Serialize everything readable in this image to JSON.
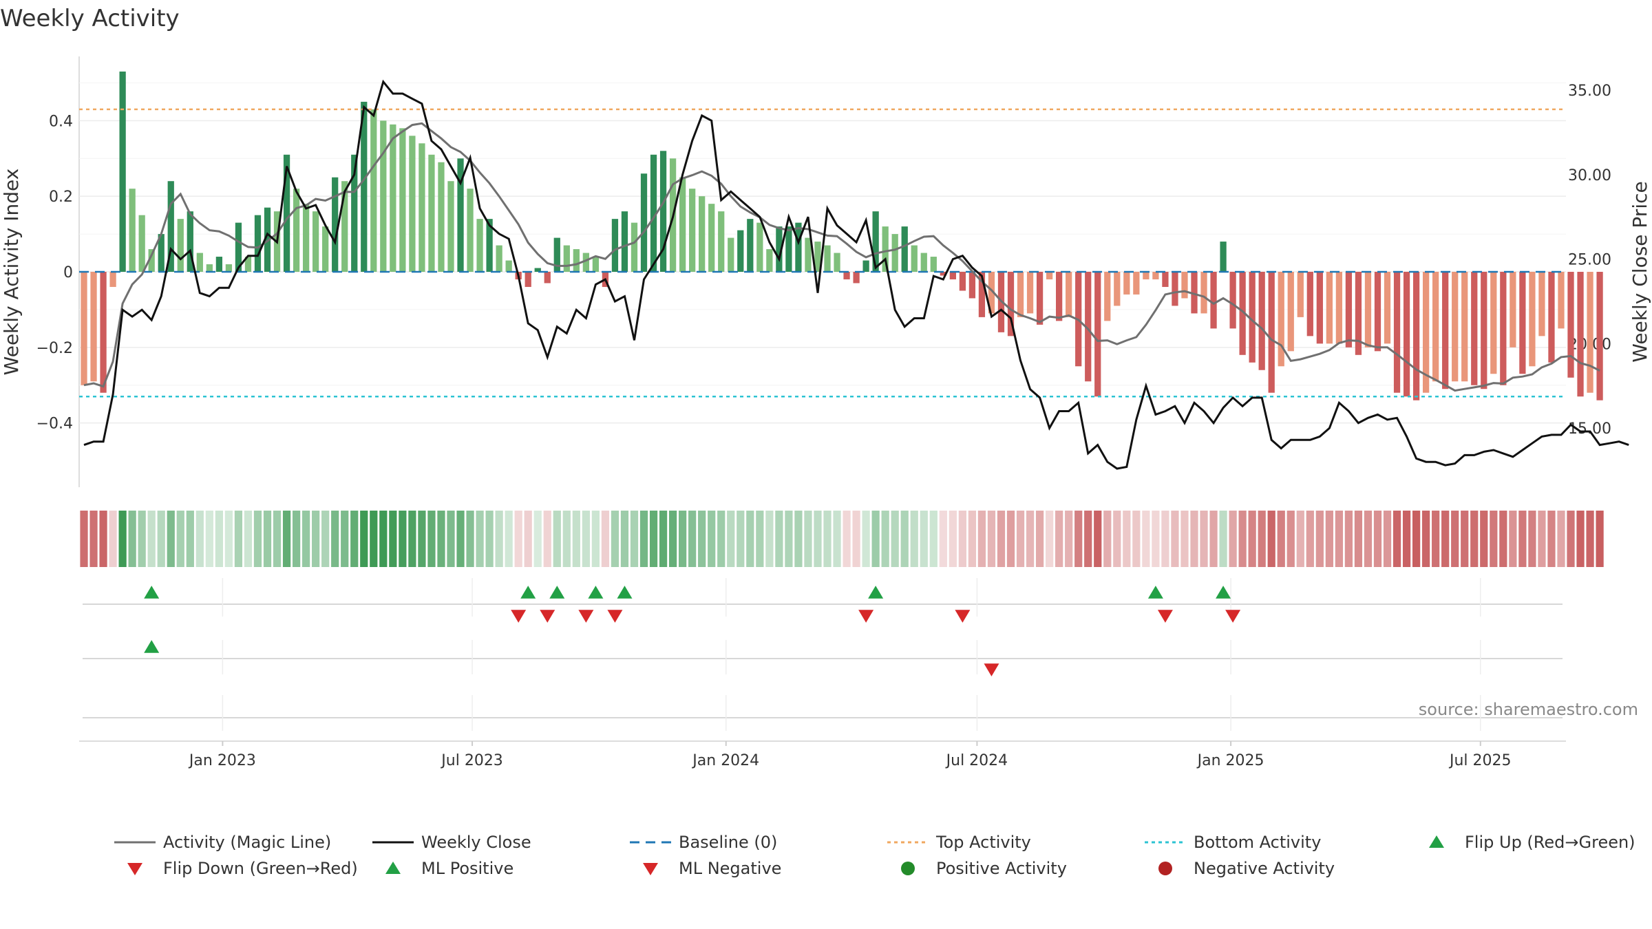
{
  "chart_data": {
    "type": "bar",
    "title": "Weekly Activity",
    "ylabel_left": "Weekly Activity Index",
    "ylabel_right": "Weekly Close Price",
    "ylim_left": [
      -0.57,
      0.57
    ],
    "ylim_right": [
      11.5,
      37
    ],
    "left_ticks": [
      {
        "v": 0.4,
        "label": "0.4"
      },
      {
        "v": 0.2,
        "label": "0.2"
      },
      {
        "v": 0,
        "label": "0"
      },
      {
        "v": -0.2,
        "label": "−0.2"
      },
      {
        "v": -0.4,
        "label": "−0.4"
      }
    ],
    "right_ticks": [
      {
        "v": 35,
        "label": "35.00"
      },
      {
        "v": 30,
        "label": "30.00"
      },
      {
        "v": 25,
        "label": "25.00"
      },
      {
        "v": 20,
        "label": "20.00"
      },
      {
        "v": 15,
        "label": "15.00"
      }
    ],
    "x_start": "2022-09-19",
    "x_end": "2025-09-01",
    "x_ticks": [
      {
        "date": "2023-01-01",
        "label": "Jan 2023"
      },
      {
        "date": "2023-07-01",
        "label": "Jul 2023"
      },
      {
        "date": "2024-01-01",
        "label": "Jan 2024"
      },
      {
        "date": "2024-07-01",
        "label": "Jul 2024"
      },
      {
        "date": "2025-01-01",
        "label": "Jan 2025"
      },
      {
        "date": "2025-07-01",
        "label": "Jul 2025"
      }
    ],
    "top_activity": 0.43,
    "bottom_activity": -0.33,
    "baseline": 0,
    "activity": [
      -0.3,
      -0.29,
      -0.32,
      -0.04,
      0.53,
      0.22,
      0.15,
      0.06,
      0.1,
      0.24,
      0.14,
      0.16,
      0.05,
      0.02,
      0.04,
      0.02,
      0.13,
      0.04,
      0.15,
      0.17,
      0.16,
      0.31,
      0.22,
      0.18,
      0.16,
      0.12,
      0.25,
      0.24,
      0.31,
      0.45,
      0.43,
      0.4,
      0.39,
      0.38,
      0.36,
      0.34,
      0.31,
      0.29,
      0.24,
      0.3,
      0.22,
      0.14,
      0.14,
      0.07,
      0.03,
      -0.02,
      -0.04,
      0.01,
      -0.03,
      0.09,
      0.07,
      0.06,
      0.05,
      0.04,
      -0.04,
      0.14,
      0.16,
      0.13,
      0.26,
      0.31,
      0.32,
      0.3,
      0.25,
      0.22,
      0.2,
      0.18,
      0.16,
      0.09,
      0.11,
      0.14,
      0.13,
      0.06,
      0.12,
      0.12,
      0.13,
      0.09,
      0.08,
      0.07,
      0.05,
      -0.02,
      -0.03,
      0.03,
      0.16,
      0.12,
      0.1,
      0.12,
      0.07,
      0.05,
      0.04,
      -0.01,
      -0.02,
      -0.05,
      -0.07,
      -0.12,
      -0.11,
      -0.16,
      -0.17,
      -0.12,
      -0.11,
      -0.14,
      -0.02,
      -0.13,
      -0.12,
      -0.25,
      -0.29,
      -0.33,
      -0.13,
      -0.09,
      -0.06,
      -0.06,
      -0.02,
      -0.02,
      -0.04,
      -0.09,
      -0.07,
      -0.11,
      -0.11,
      -0.15,
      0.08,
      -0.15,
      -0.22,
      -0.24,
      -0.26,
      -0.32,
      -0.25,
      -0.21,
      -0.12,
      -0.17,
      -0.19,
      -0.19,
      -0.19,
      -0.2,
      -0.22,
      -0.2,
      -0.21,
      -0.19,
      -0.32,
      -0.33,
      -0.34,
      -0.32,
      -0.29,
      -0.31,
      -0.29,
      -0.29,
      -0.3,
      -0.31,
      -0.27,
      -0.3,
      -0.2,
      -0.27,
      -0.25,
      -0.17,
      -0.24,
      -0.15,
      -0.28,
      -0.33,
      -0.32,
      -0.34
    ],
    "close_price": [
      14.0,
      14.2,
      14.2,
      17.0,
      22.0,
      21.6,
      22.0,
      21.4,
      22.8,
      25.6,
      25.0,
      25.5,
      23.0,
      22.8,
      23.3,
      23.3,
      24.5,
      25.2,
      25.2,
      26.5,
      26.0,
      30.5,
      29.0,
      28.0,
      28.2,
      27.0,
      26.0,
      29.0,
      30.0,
      34.0,
      33.5,
      35.5,
      34.8,
      34.8,
      34.5,
      34.2,
      32.0,
      31.5,
      30.5,
      29.5,
      31.0,
      28.0,
      27.0,
      26.5,
      26.2,
      24.0,
      21.2,
      20.8,
      19.2,
      21.0,
      20.6,
      22.0,
      21.5,
      23.5,
      23.8,
      22.5,
      22.8,
      20.2,
      23.8,
      24.7,
      25.6,
      27.5,
      30.0,
      32.0,
      33.5,
      33.2,
      28.5,
      29.0,
      28.5,
      28.0,
      27.5,
      26.0,
      25.0,
      27.5,
      26.0,
      27.5,
      23.0,
      28.0,
      27.0,
      26.5,
      26.0,
      27.3,
      24.5,
      25.0,
      22.0,
      21.0,
      21.5,
      21.5,
      24.0,
      23.8,
      25.0,
      25.2,
      24.5,
      24.0,
      21.6,
      22.0,
      21.5,
      19.0,
      17.3,
      16.8,
      15.0,
      16.0,
      16.0,
      16.5,
      13.5,
      14.0,
      13.0,
      12.6,
      12.7,
      15.5,
      17.5,
      15.8,
      16.0,
      16.3,
      15.3,
      16.5,
      16.0,
      15.3,
      16.2,
      16.8,
      16.3,
      16.8,
      16.8,
      14.3,
      13.8,
      14.3,
      14.3,
      14.3,
      14.5,
      15.0,
      16.5,
      16.0,
      15.3,
      15.6,
      15.8,
      15.5,
      15.6,
      14.5,
      13.2,
      13.0,
      13.0,
      12.8,
      12.9,
      13.4,
      13.4,
      13.6,
      13.7,
      13.5,
      13.3,
      13.7,
      14.1,
      14.5,
      14.6,
      14.6,
      15.2,
      14.8,
      14.8,
      14.0,
      14.1,
      14.2,
      14.0
    ],
    "magic_line_smoothing": 7,
    "signals": {
      "flip_up": [
        "2022-11-07",
        "2023-08-07",
        "2023-08-28",
        "2023-09-25",
        "2023-10-16",
        "2024-04-15",
        "2024-11-04",
        "2024-12-23"
      ],
      "flip_down": [
        "2023-07-31",
        "2023-08-21",
        "2023-09-18",
        "2023-10-09",
        "2024-04-08",
        "2024-06-17",
        "2024-11-11",
        "2024-12-30"
      ],
      "ml_positive": [
        "2022-11-07"
      ],
      "ml_negative": [
        "2024-07-08"
      ]
    },
    "watermark": "source: sharemaestro.com",
    "legend": [
      {
        "label": "Activity (Magic Line)",
        "symbol": "line-solid",
        "color": "#707070"
      },
      {
        "label": "Weekly Close",
        "symbol": "line-solid",
        "color": "#111111"
      },
      {
        "label": "Baseline (0)",
        "symbol": "line-dash",
        "color": "#1f77b4"
      },
      {
        "label": "Top Activity",
        "symbol": "line-dot",
        "color": "#f0a860"
      },
      {
        "label": "Bottom Activity",
        "symbol": "line-dot",
        "color": "#2cc3d3"
      },
      {
        "label": "Flip Up (Red→Green)",
        "symbol": "triangle-up",
        "color": "#22a045"
      },
      {
        "label": "Flip Down (Green→Red)",
        "symbol": "triangle-down",
        "color": "#d62728"
      },
      {
        "label": "ML Positive",
        "symbol": "triangle-up",
        "color": "#22a045"
      },
      {
        "label": "ML Negative",
        "symbol": "triangle-down",
        "color": "#d62728"
      },
      {
        "label": "Positive Activity",
        "symbol": "circle",
        "color": "#238b2a"
      },
      {
        "label": "Negative Activity",
        "symbol": "circle",
        "color": "#b22222"
      }
    ],
    "legend_position": "bottom",
    "colors": {
      "bar_green_strong": "#2e8b57",
      "bar_green_light": "#7fbf7b",
      "bar_red_strong": "#cd5c5c",
      "bar_red_light": "#e9967a",
      "grid": "#ececec",
      "axis": "#dddddd"
    }
  }
}
